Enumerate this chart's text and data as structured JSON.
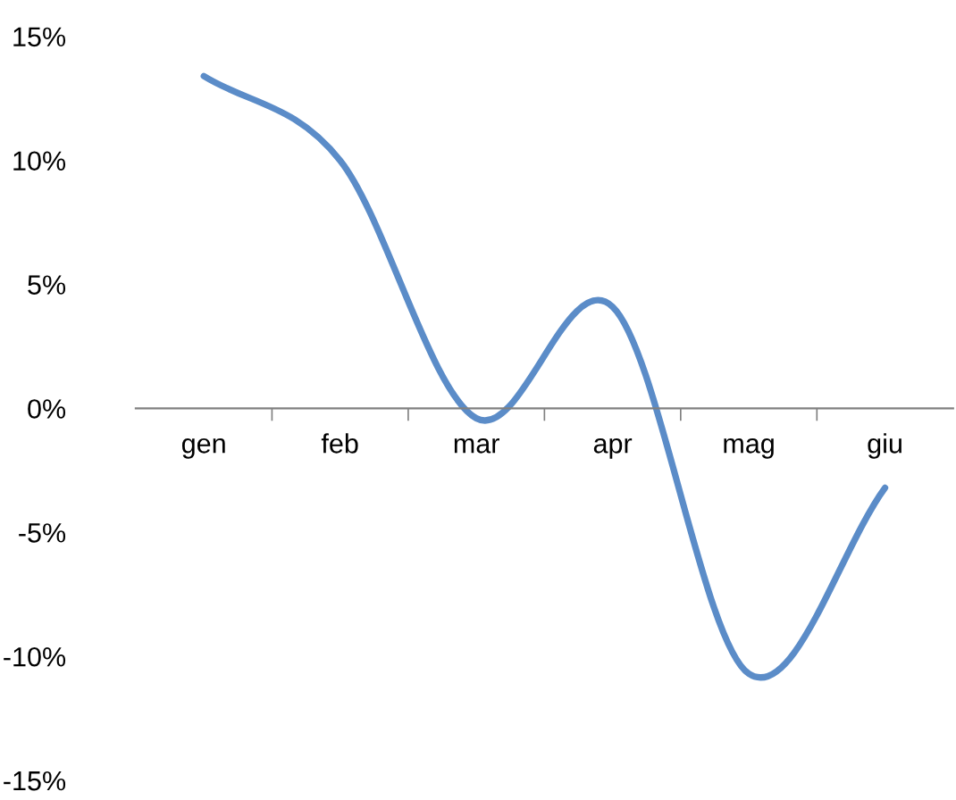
{
  "chart_data": {
    "type": "line",
    "categories": [
      "gen",
      "feb",
      "mar",
      "apr",
      "mag",
      "giu"
    ],
    "series": [
      {
        "color": "#5b8cc8",
        "values": [
          13.4,
          10.0,
          -0.4,
          4.1,
          -10.7,
          -3.2
        ]
      }
    ],
    "ylim": [
      -15,
      15
    ],
    "yticks": [
      {
        "value": -15,
        "label": "-15%"
      },
      {
        "value": -10,
        "label": "-10%"
      },
      {
        "value": -5,
        "label": "-5%"
      },
      {
        "value": 0,
        "label": "0%"
      },
      {
        "value": 5,
        "label": "5%"
      },
      {
        "value": 10,
        "label": "10%"
      },
      {
        "value": 15,
        "label": "15%"
      }
    ],
    "grid": false,
    "legend": false,
    "marker": "none",
    "line_style": "solid"
  }
}
